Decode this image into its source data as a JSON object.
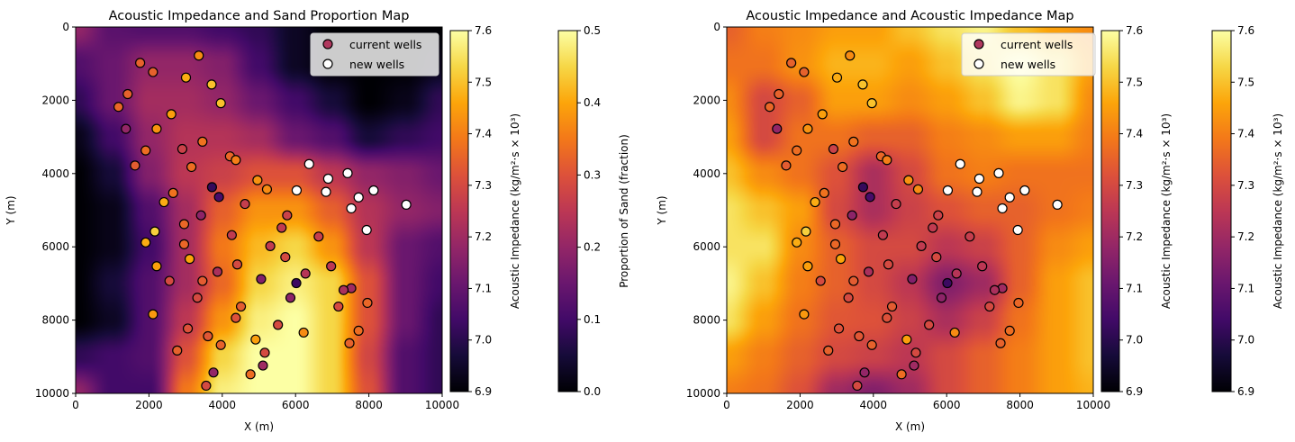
{
  "chart_data": [
    {
      "type": "heatmap",
      "title": "Acoustic Impedance and Sand Proportion Map",
      "xlabel": "X (m)",
      "ylabel": "Y (m)",
      "xlim": [
        0,
        10000
      ],
      "ylim": [
        10000,
        0
      ],
      "xticks": [
        "0",
        "2000",
        "4000",
        "6000",
        "8000",
        "10000"
      ],
      "yticks": [
        "0",
        "2000",
        "4000",
        "6000",
        "8000",
        "10000"
      ],
      "field": "sand_proportion",
      "grid_step": 1000,
      "grid": [
        [
          0.2,
          0.13,
          0.12,
          0.12,
          0.1,
          0.08,
          0.03,
          0.0,
          0.0,
          0.0,
          0.0
        ],
        [
          0.12,
          0.15,
          0.2,
          0.2,
          0.18,
          0.1,
          0.03,
          0.0,
          0.0,
          0.0,
          0.02
        ],
        [
          0.08,
          0.15,
          0.22,
          0.22,
          0.2,
          0.15,
          0.1,
          0.05,
          0.0,
          0.02,
          0.08
        ],
        [
          0.02,
          0.1,
          0.2,
          0.24,
          0.24,
          0.22,
          0.15,
          0.12,
          0.05,
          0.08,
          0.1
        ],
        [
          0.0,
          0.05,
          0.18,
          0.25,
          0.27,
          0.3,
          0.3,
          0.25,
          0.2,
          0.18,
          0.15
        ],
        [
          0.0,
          0.02,
          0.12,
          0.22,
          0.32,
          0.38,
          0.38,
          0.32,
          0.24,
          0.2,
          0.18
        ],
        [
          0.0,
          0.02,
          0.1,
          0.22,
          0.35,
          0.42,
          0.45,
          0.38,
          0.25,
          0.15,
          0.12
        ],
        [
          0.0,
          0.05,
          0.12,
          0.22,
          0.33,
          0.45,
          0.48,
          0.45,
          0.3,
          0.15,
          0.1
        ],
        [
          0.0,
          0.03,
          0.12,
          0.25,
          0.38,
          0.48,
          0.5,
          0.45,
          0.3,
          0.15,
          0.08
        ],
        [
          0.08,
          0.1,
          0.12,
          0.3,
          0.45,
          0.5,
          0.5,
          0.45,
          0.28,
          0.12,
          0.08
        ],
        [
          0.2,
          0.1,
          0.1,
          0.35,
          0.48,
          0.5,
          0.5,
          0.45,
          0.3,
          0.12,
          0.08
        ]
      ],
      "grid_range": [
        0,
        0.5
      ],
      "colorbars": [
        {
          "label": "Acoustic Impedance (kg/m²·s × 10³)",
          "range": [
            6.9,
            7.6
          ],
          "ticks": [
            "6.9",
            "7.0",
            "7.1",
            "7.2",
            "7.3",
            "7.4",
            "7.5",
            "7.6"
          ]
        },
        {
          "label": "Proportion of Sand (fraction)",
          "range": [
            0,
            0.5
          ],
          "ticks": [
            "0.0",
            "0.1",
            "0.2",
            "0.3",
            "0.4",
            "0.5"
          ]
        }
      ],
      "legend": {
        "placement": "top-right",
        "entries": [
          "current wells",
          "new wells"
        ]
      }
    },
    {
      "type": "heatmap",
      "title": "Acoustic Impedance and Acoustic Impedance Map",
      "xlabel": "X (m)",
      "ylabel": "Y (m)",
      "xlim": [
        0,
        10000
      ],
      "ylim": [
        10000,
        0
      ],
      "xticks": [
        "0",
        "2000",
        "4000",
        "6000",
        "8000",
        "10000"
      ],
      "yticks": [
        "0",
        "2000",
        "4000",
        "6000",
        "8000",
        "10000"
      ],
      "field": "acoustic_impedance",
      "grid_step": 1000,
      "grid": [
        [
          7.35,
          7.4,
          7.42,
          7.45,
          7.45,
          7.5,
          7.55,
          7.58,
          7.5,
          7.45,
          7.42
        ],
        [
          7.38,
          7.38,
          7.43,
          7.48,
          7.48,
          7.45,
          7.5,
          7.55,
          7.6,
          7.55,
          7.45
        ],
        [
          7.42,
          7.3,
          7.35,
          7.45,
          7.45,
          7.42,
          7.45,
          7.5,
          7.58,
          7.55,
          7.42
        ],
        [
          7.45,
          7.3,
          7.38,
          7.38,
          7.35,
          7.35,
          7.4,
          7.42,
          7.45,
          7.45,
          7.4
        ],
        [
          7.5,
          7.42,
          7.38,
          7.32,
          7.22,
          7.3,
          7.38,
          7.4,
          7.38,
          7.38,
          7.38
        ],
        [
          7.55,
          7.5,
          7.45,
          7.3,
          7.22,
          7.28,
          7.32,
          7.35,
          7.35,
          7.38,
          7.4
        ],
        [
          7.55,
          7.55,
          7.42,
          7.35,
          7.3,
          7.3,
          7.25,
          7.28,
          7.35,
          7.42,
          7.45
        ],
        [
          7.58,
          7.5,
          7.4,
          7.35,
          7.3,
          7.25,
          7.15,
          7.2,
          7.35,
          7.45,
          7.5
        ],
        [
          7.55,
          7.45,
          7.38,
          7.33,
          7.32,
          7.28,
          7.22,
          7.28,
          7.38,
          7.45,
          7.5
        ],
        [
          7.45,
          7.4,
          7.35,
          7.3,
          7.28,
          7.25,
          7.3,
          7.35,
          7.4,
          7.45,
          7.5
        ],
        [
          7.4,
          7.38,
          7.32,
          7.2,
          7.15,
          7.2,
          7.3,
          7.35,
          7.4,
          7.45,
          7.48
        ]
      ],
      "grid_range": [
        6.9,
        7.6
      ],
      "colorbars": [
        {
          "label": "Acoustic Impedance (kg/m²·s × 10³)",
          "range": [
            6.9,
            7.6
          ],
          "ticks": [
            "6.9",
            "7.0",
            "7.1",
            "7.2",
            "7.3",
            "7.4",
            "7.5",
            "7.6"
          ]
        },
        {
          "label": "Acoustic Impedance (kg/m²·s × 10³)",
          "range": [
            6.9,
            7.6
          ],
          "ticks": [
            "6.9",
            "7.0",
            "7.1",
            "7.2",
            "7.3",
            "7.4",
            "7.5",
            "7.6"
          ]
        }
      ],
      "legend": {
        "placement": "top-right",
        "entries": [
          "current wells",
          "new wells"
        ]
      }
    }
  ],
  "wells": {
    "current_color_range": [
      6.9,
      7.6
    ],
    "current": [
      [
        1760,
        980,
        7.35
      ],
      [
        2110,
        1230,
        7.35
      ],
      [
        3360,
        780,
        7.42
      ],
      [
        3010,
        1380,
        7.47
      ],
      [
        3710,
        1570,
        7.5
      ],
      [
        3960,
        2080,
        7.5
      ],
      [
        1420,
        1830,
        7.35
      ],
      [
        1170,
        2180,
        7.36
      ],
      [
        2610,
        2380,
        7.45
      ],
      [
        1370,
        2780,
        7.18
      ],
      [
        2210,
        2780,
        7.43
      ],
      [
        3460,
        3130,
        7.38
      ],
      [
        1910,
        3370,
        7.37
      ],
      [
        2910,
        3330,
        7.28
      ],
      [
        4210,
        3530,
        7.36
      ],
      [
        4370,
        3630,
        7.4
      ],
      [
        1620,
        3780,
        7.34
      ],
      [
        3160,
        3820,
        7.37
      ],
      [
        4960,
        4180,
        7.43
      ],
      [
        5220,
        4430,
        7.42
      ],
      [
        3720,
        4370,
        7.02
      ],
      [
        3910,
        4640,
        7.05
      ],
      [
        2660,
        4530,
        7.38
      ],
      [
        2410,
        4780,
        7.47
      ],
      [
        4620,
        4830,
        7.27
      ],
      [
        3420,
        5140,
        7.17
      ],
      [
        5770,
        5140,
        7.28
      ],
      [
        2960,
        5380,
        7.36
      ],
      [
        5620,
        5480,
        7.26
      ],
      [
        2160,
        5580,
        7.52
      ],
      [
        1910,
        5880,
        7.47
      ],
      [
        4260,
        5680,
        7.26
      ],
      [
        6630,
        5720,
        7.27
      ],
      [
        2960,
        5930,
        7.36
      ],
      [
        5310,
        5980,
        7.26
      ],
      [
        3110,
        6330,
        7.46
      ],
      [
        5720,
        6280,
        7.3
      ],
      [
        2210,
        6530,
        7.45
      ],
      [
        4410,
        6480,
        7.3
      ],
      [
        6970,
        6530,
        7.25
      ],
      [
        3870,
        6680,
        7.22
      ],
      [
        6270,
        6730,
        7.24
      ],
      [
        5060,
        6880,
        7.15
      ],
      [
        6020,
        6990,
        7.03
      ],
      [
        2560,
        6930,
        7.3
      ],
      [
        3460,
        6930,
        7.34
      ],
      [
        7520,
        7130,
        7.2
      ],
      [
        7310,
        7180,
        7.22
      ],
      [
        5860,
        7390,
        7.17
      ],
      [
        3320,
        7390,
        7.3
      ],
      [
        7170,
        7630,
        7.3
      ],
      [
        7960,
        7530,
        7.36
      ],
      [
        4510,
        7630,
        7.34
      ],
      [
        4370,
        7940,
        7.32
      ],
      [
        2110,
        7840,
        7.44
      ],
      [
        5520,
        8130,
        7.3
      ],
      [
        6220,
        8340,
        7.42
      ],
      [
        7720,
        8290,
        7.37
      ],
      [
        3060,
        8230,
        7.32
      ],
      [
        3610,
        8440,
        7.33
      ],
      [
        7470,
        8630,
        7.35
      ],
      [
        3960,
        8680,
        7.35
      ],
      [
        4910,
        8530,
        7.45
      ],
      [
        2770,
        8830,
        7.35
      ],
      [
        5160,
        8890,
        7.3
      ],
      [
        5110,
        9240,
        7.2
      ],
      [
        3760,
        9430,
        7.18
      ],
      [
        4770,
        9480,
        7.37
      ],
      [
        3560,
        9790,
        7.3
      ]
    ],
    "new": [
      [
        6370,
        3740
      ],
      [
        6890,
        4140
      ],
      [
        7420,
        3990
      ],
      [
        6030,
        4460
      ],
      [
        6830,
        4500
      ],
      [
        8130,
        4460
      ],
      [
        7720,
        4650
      ],
      [
        7520,
        4950
      ],
      [
        9020,
        4850
      ],
      [
        7940,
        5540
      ]
    ]
  }
}
